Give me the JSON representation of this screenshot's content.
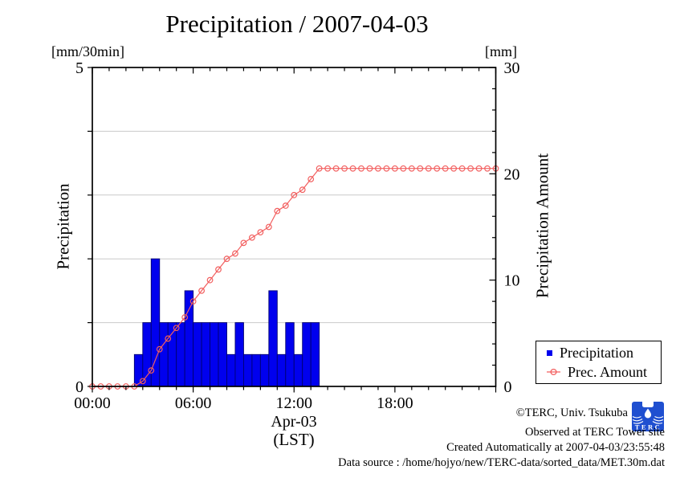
{
  "title": "Precipitation / 2007-04-03",
  "left_axis": {
    "unit": "[mm/30min]",
    "label": "Precipitation",
    "min": 0,
    "max": 5,
    "tick_labels": [
      "0",
      "5"
    ],
    "tick_values": [
      0,
      5
    ],
    "gridline_values": [
      1,
      2,
      3,
      4
    ]
  },
  "right_axis": {
    "unit": "[mm]",
    "label": "Precipitation Amount",
    "min": 0,
    "max": 30,
    "tick_labels": [
      "0",
      "10",
      "20",
      "30"
    ],
    "tick_values": [
      0,
      10,
      20,
      30
    ],
    "minor_step": 2
  },
  "x_axis": {
    "min_hour": 0,
    "max_hour": 24,
    "tick_labels": [
      "00:00",
      "06:00",
      "12:00",
      "18:00"
    ],
    "tick_hours": [
      0,
      6,
      12,
      18
    ],
    "minor_every_hours": 1,
    "date_label": "Apr-03",
    "tz_label": "(LST)"
  },
  "legend": {
    "items": [
      {
        "label": "Precipitation",
        "marker": "blue-square"
      },
      {
        "label": "Prec. Amount",
        "marker": "red-open-circle"
      }
    ]
  },
  "footer": {
    "copyright": "©TERC, Univ. Tsukuba",
    "logo_text": "TERC",
    "observed": "Observed at TERC Tower site",
    "created": "Created Automatically at 2007-04-03/23:55:48",
    "data_source": "Data source : /home/hojyo/new/TERC-data/sorted_data/MET.30m.dat"
  },
  "colors": {
    "bar_fill": "#0000ee",
    "bar_edge": "#000070",
    "line": "#f25f5f",
    "grid": "#c9c9c9",
    "axis": "#000000"
  },
  "chart_data": {
    "type": "combo",
    "title": "Precipitation / 2007-04-03",
    "xlabel": "Apr-03 (LST)",
    "x_range_hours": [
      0,
      24
    ],
    "left_ylim": [
      0,
      5
    ],
    "right_ylim": [
      0,
      30
    ],
    "grid": "horizontal-only",
    "legend_position": "outside-right-bottom",
    "series": [
      {
        "name": "Precipitation",
        "type": "bar",
        "axis": "left",
        "unit": "mm/30min",
        "bar_width_hours": 0.5,
        "bars": [
          {
            "start": "02:30",
            "hour": 2.5,
            "value": 0.5
          },
          {
            "start": "03:00",
            "hour": 3.0,
            "value": 1.0
          },
          {
            "start": "03:30",
            "hour": 3.5,
            "value": 2.0
          },
          {
            "start": "04:00",
            "hour": 4.0,
            "value": 1.0
          },
          {
            "start": "04:30",
            "hour": 4.5,
            "value": 1.0
          },
          {
            "start": "05:00",
            "hour": 5.0,
            "value": 1.0
          },
          {
            "start": "05:30",
            "hour": 5.5,
            "value": 1.5
          },
          {
            "start": "06:00",
            "hour": 6.0,
            "value": 1.0
          },
          {
            "start": "06:30",
            "hour": 6.5,
            "value": 1.0
          },
          {
            "start": "07:00",
            "hour": 7.0,
            "value": 1.0
          },
          {
            "start": "07:30",
            "hour": 7.5,
            "value": 1.0
          },
          {
            "start": "08:00",
            "hour": 8.0,
            "value": 0.5
          },
          {
            "start": "08:30",
            "hour": 8.5,
            "value": 1.0
          },
          {
            "start": "09:00",
            "hour": 9.0,
            "value": 0.5
          },
          {
            "start": "09:30",
            "hour": 9.5,
            "value": 0.5
          },
          {
            "start": "10:00",
            "hour": 10.0,
            "value": 0.5
          },
          {
            "start": "10:30",
            "hour": 10.5,
            "value": 1.5
          },
          {
            "start": "11:00",
            "hour": 11.0,
            "value": 0.5
          },
          {
            "start": "11:30",
            "hour": 11.5,
            "value": 1.0
          },
          {
            "start": "12:00",
            "hour": 12.0,
            "value": 0.5
          },
          {
            "start": "12:30",
            "hour": 12.5,
            "value": 1.0
          },
          {
            "start": "13:00",
            "hour": 13.0,
            "value": 1.0
          }
        ]
      },
      {
        "name": "Prec. Amount",
        "type": "line",
        "axis": "right",
        "unit": "mm",
        "marker": "open-circle",
        "points": [
          [
            0,
            0
          ],
          [
            0.5,
            0
          ],
          [
            1,
            0
          ],
          [
            1.5,
            0
          ],
          [
            2,
            0
          ],
          [
            2.5,
            0
          ],
          [
            3,
            0.5
          ],
          [
            3.5,
            1.5
          ],
          [
            4,
            3.5
          ],
          [
            4.5,
            4.5
          ],
          [
            5,
            5.5
          ],
          [
            5.5,
            6.5
          ],
          [
            6,
            8
          ],
          [
            6.5,
            9
          ],
          [
            7,
            10
          ],
          [
            7.5,
            11
          ],
          [
            8,
            12
          ],
          [
            8.5,
            12.5
          ],
          [
            9,
            13.5
          ],
          [
            9.5,
            14
          ],
          [
            10,
            14.5
          ],
          [
            10.5,
            15
          ],
          [
            11,
            16.5
          ],
          [
            11.5,
            17
          ],
          [
            12,
            18
          ],
          [
            12.5,
            18.5
          ],
          [
            13,
            19.5
          ],
          [
            13.5,
            20.5
          ],
          [
            14,
            20.5
          ],
          [
            14.5,
            20.5
          ],
          [
            15,
            20.5
          ],
          [
            15.5,
            20.5
          ],
          [
            16,
            20.5
          ],
          [
            16.5,
            20.5
          ],
          [
            17,
            20.5
          ],
          [
            17.5,
            20.5
          ],
          [
            18,
            20.5
          ],
          [
            18.5,
            20.5
          ],
          [
            19,
            20.5
          ],
          [
            19.5,
            20.5
          ],
          [
            20,
            20.5
          ],
          [
            20.5,
            20.5
          ],
          [
            21,
            20.5
          ],
          [
            21.5,
            20.5
          ],
          [
            22,
            20.5
          ],
          [
            22.5,
            20.5
          ],
          [
            23,
            20.5
          ],
          [
            23.5,
            20.5
          ],
          [
            24,
            20.5
          ]
        ]
      }
    ]
  }
}
